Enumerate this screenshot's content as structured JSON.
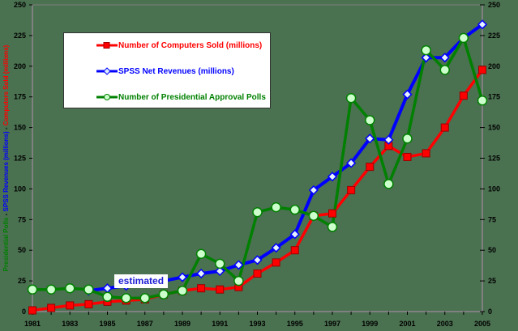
{
  "chart_data": {
    "type": "line",
    "title": "",
    "xlabel": "",
    "ylabel_left": "Presidential Polls - SPSS Revenues (millions) - Computers Sold (millions)",
    "ylabel_left_parts": [
      {
        "text": "Presidential Polls",
        "color": "#008000"
      },
      {
        "text": " - ",
        "color": "#000000"
      },
      {
        "text": "SPSS Revenues (millions)",
        "color": "#0000ff"
      },
      {
        "text": " - ",
        "color": "#000000"
      },
      {
        "text": "Computers Sold (millions)",
        "color": "#ff0000"
      }
    ],
    "ylim": [
      0,
      250
    ],
    "y_ticks": [
      0,
      25,
      50,
      75,
      100,
      125,
      150,
      175,
      200,
      225,
      250
    ],
    "y2_ticks": [
      0,
      25,
      50,
      75,
      100,
      125,
      150,
      175,
      200,
      225,
      250
    ],
    "x_tick_labels": [
      "1981",
      "1983",
      "1985",
      "1987",
      "1989",
      "1991",
      "1993",
      "1995",
      "1997",
      "1999",
      "2001",
      "2003",
      "2005"
    ],
    "x": [
      1981,
      1982,
      1983,
      1984,
      1985,
      1986,
      1987,
      1988,
      1989,
      1990,
      1991,
      1992,
      1993,
      1994,
      1995,
      1996,
      1997,
      1998,
      1999,
      2000,
      2001,
      2002,
      2003,
      2004,
      2005
    ],
    "grid": false,
    "legend_position": "upper-left inset",
    "annotations": [
      {
        "text": "estimated",
        "x": 1988,
        "y": 24
      }
    ],
    "series": [
      {
        "name": "Number of Computers Sold (millions)",
        "color": "#ff0000",
        "marker": "square",
        "values": [
          1,
          3,
          5,
          6,
          8,
          9,
          10,
          14,
          17,
          19,
          18,
          20,
          31,
          40,
          50,
          78,
          80,
          99,
          118,
          135,
          126,
          129,
          150,
          176,
          197
        ]
      },
      {
        "name": "SPSS Net Revenues (millions)",
        "color": "#0000ff",
        "marker": "diamond",
        "values": [
          null,
          null,
          null,
          17,
          19,
          21,
          23,
          25,
          28,
          31,
          33,
          38,
          42,
          52,
          63,
          99,
          110,
          121,
          141,
          140,
          177,
          207,
          207,
          223,
          234
        ]
      },
      {
        "name": "Number of Presidential Approval Polls",
        "color": "#008000",
        "marker": "circle",
        "values": [
          18,
          18,
          19,
          18,
          12,
          11,
          11,
          14,
          17,
          47,
          39,
          25,
          81,
          85,
          83,
          78,
          69,
          174,
          156,
          104,
          141,
          213,
          197,
          223,
          172
        ]
      }
    ]
  },
  "legend": {
    "items": [
      {
        "label": "Number of Computers Sold (millions)",
        "color": "#ff0000"
      },
      {
        "label": "SPSS Net Revenues (millions)",
        "color": "#0000ff"
      },
      {
        "label": "Number of Presidential Approval Polls",
        "color": "#008000"
      }
    ]
  },
  "annotation": {
    "estimated_label": "estimated"
  },
  "colors": {
    "background": "#4a7150",
    "axis": "#808080"
  }
}
